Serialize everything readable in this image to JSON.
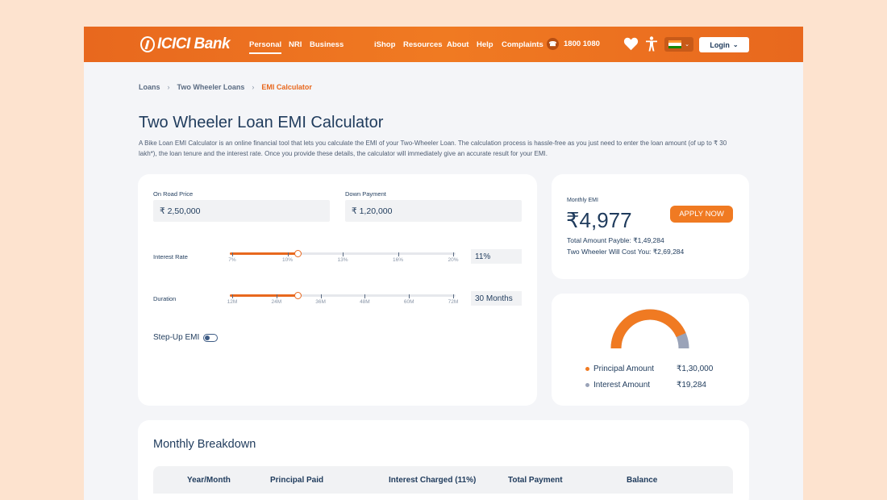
{
  "header": {
    "brand": "ICICI Bank",
    "nav_left": [
      "Personal",
      "NRI",
      "Business"
    ],
    "nav_right": [
      "iShop",
      "Resources",
      "About",
      "Help",
      "Complaints"
    ],
    "phone": "1800 1080",
    "login_label": "Login",
    "accent_color": "#f07a22"
  },
  "breadcrumb": [
    "Loans",
    "Two Wheeler Loans",
    "EMI Calculator"
  ],
  "page": {
    "title": "Two Wheeler Loan EMI Calculator",
    "intro": "A Bike Loan EMI Calculator is an online financial tool that lets you calculate the EMI of your Two-Wheeler Loan. The calculation process is hassle-free as you just need to enter the loan amount (of up to ₹ 30 lakh*), the loan tenure and the interest rate. Once you provide these details, the calculator will immediately give an accurate result for your EMI."
  },
  "calculator": {
    "on_road_label": "On Road Price",
    "on_road_value": "₹ 2,50,000",
    "down_payment_label": "Down Payment",
    "down_payment_value": "₹ 1,20,000",
    "interest": {
      "label": "Interest Rate",
      "ticks": [
        "7%",
        "10%",
        "13%",
        "16%",
        "20%"
      ],
      "value": "11%",
      "fraction": 0.3
    },
    "duration": {
      "label": "Duration",
      "ticks": [
        "12M",
        "24M",
        "36M",
        "48M",
        "60M",
        "72M"
      ],
      "value": "30 Months",
      "fraction": 0.3
    },
    "stepup_label": "Step-Up EMI"
  },
  "emi": {
    "label": "Monthly EMI",
    "value": "₹4,977",
    "apply_label": "APPLY NOW",
    "total_payable": "Total Amount Payble: ₹1,49,284",
    "total_cost": "Two Wheeler Will Cost You: ₹2,69,284"
  },
  "breakup": {
    "principal_label": "Principal Amount",
    "principal_value": "₹1,30,000",
    "interest_label": "Interest Amount",
    "interest_value": "₹19,284",
    "principal_color": "#f07a22",
    "interest_color": "#9aa3b8"
  },
  "breakdown": {
    "title": "Monthly Breakdown",
    "columns": [
      "Year/Month",
      "Principal Paid",
      "Interest Charged (11%)",
      "Total Payment",
      "Balance"
    ]
  }
}
